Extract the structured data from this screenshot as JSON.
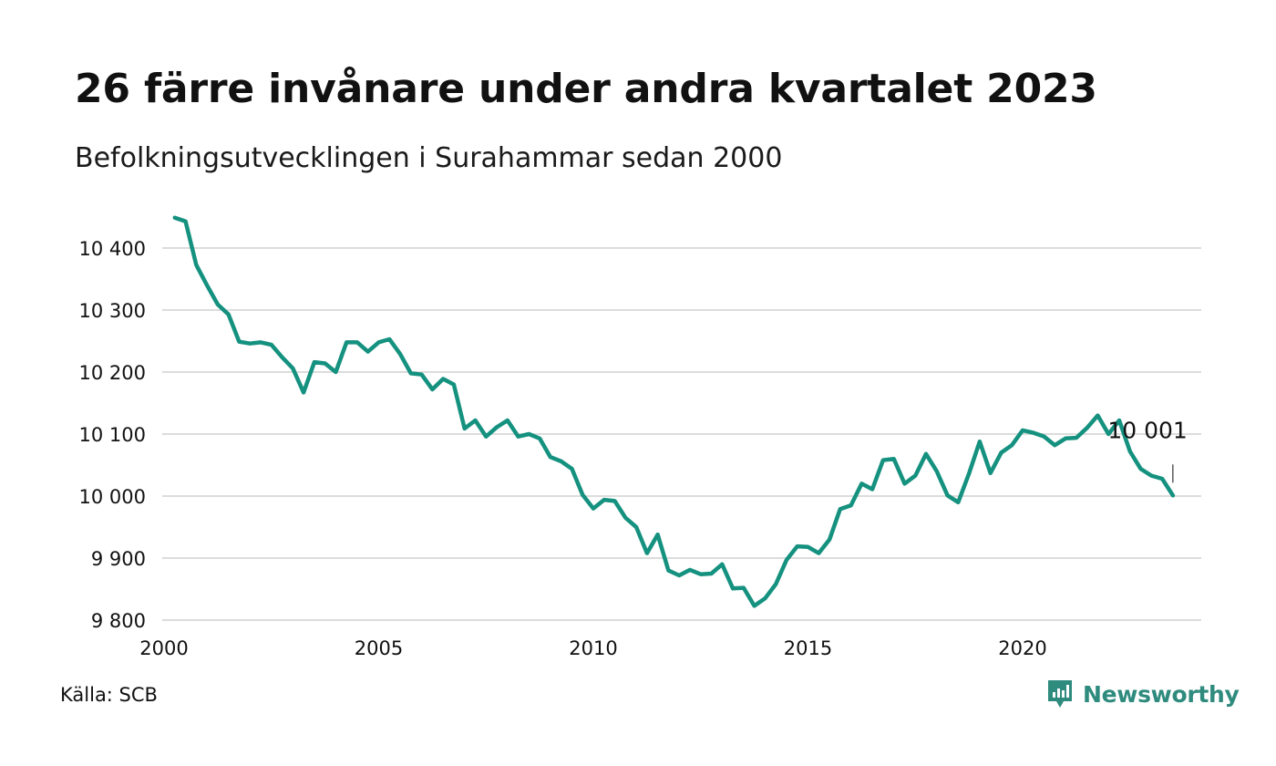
{
  "title": "26 färre invånare under andra kvartalet 2023",
  "subtitle": "Befolkningsutvecklingen i Surahammar sedan 2000",
  "source": "Källa: SCB",
  "brand": {
    "name": "Newsworthy",
    "icon": "newsworthy-logo-icon"
  },
  "colors": {
    "line": "#15917f",
    "grid": "#dcdcdc",
    "brand": "#2e8b7e",
    "text": "#111111"
  },
  "chart_data": {
    "type": "line",
    "title": "26 färre invånare under andra kvartalet 2023",
    "subtitle": "Befolkningsutvecklingen i Surahammar sedan 2000",
    "xlabel": "",
    "ylabel": "",
    "xlim": [
      2000,
      2024.5
    ],
    "ylim": [
      9800,
      10450
    ],
    "grid": true,
    "legend": "none",
    "x_ticks": [
      2000,
      2005,
      2010,
      2015,
      2020
    ],
    "x_tick_labels": [
      "2000",
      "2005",
      "2010",
      "2015",
      "2020"
    ],
    "y_ticks": [
      9800,
      9900,
      10000,
      10100,
      10200,
      10300,
      10400
    ],
    "y_tick_labels": [
      "9 800",
      "9 900",
      "10 000",
      "10 100",
      "10 200",
      "10 300",
      "10 400"
    ],
    "annotation": {
      "x": 2023.5,
      "y": 10001,
      "text": "10 001"
    },
    "series": [
      {
        "x": [
          2000.25,
          2000.5,
          2000.75,
          2001.0,
          2001.25,
          2001.5,
          2001.75,
          2002.0,
          2002.25,
          2002.5,
          2002.75,
          2003.0,
          2003.25,
          2003.5,
          2003.75,
          2004.0,
          2004.25,
          2004.5,
          2004.75,
          2005.0,
          2005.25,
          2005.5,
          2005.75,
          2006.0,
          2006.25,
          2006.5,
          2006.75,
          2007.0,
          2007.25,
          2007.5,
          2007.75,
          2008.0,
          2008.25,
          2008.5,
          2008.75,
          2009.0,
          2009.25,
          2009.5,
          2009.75,
          2010.0,
          2010.25,
          2010.5,
          2010.75,
          2011.0,
          2011.25,
          2011.5,
          2011.75,
          2012.0,
          2012.25,
          2012.5,
          2012.75,
          2013.0,
          2013.25,
          2013.5,
          2013.75,
          2014.0,
          2014.25,
          2014.5,
          2014.75,
          2015.0,
          2015.25,
          2015.5,
          2015.75,
          2016.0,
          2016.25,
          2016.5,
          2016.75,
          2017.0,
          2017.25,
          2017.5,
          2017.75,
          2018.0,
          2018.25,
          2018.5,
          2018.75,
          2019.0,
          2019.25,
          2019.5,
          2019.75,
          2020.0,
          2020.25,
          2020.5,
          2020.75,
          2021.0,
          2021.25,
          2021.5,
          2021.75,
          2022.0,
          2022.25,
          2022.5,
          2022.75,
          2023.0,
          2023.25,
          2023.5
        ],
        "values": [
          10449,
          10443,
          10373,
          10340,
          10309,
          10293,
          10249,
          10246,
          10248,
          10244,
          10224,
          10206,
          10167,
          10216,
          10214,
          10200,
          10248,
          10248,
          10233,
          10248,
          10253,
          10229,
          10198,
          10196,
          10172,
          10189,
          10180,
          10109,
          10122,
          10096,
          10111,
          10122,
          10096,
          10100,
          10093,
          10063,
          10056,
          10044,
          10002,
          9980,
          9994,
          9992,
          9965,
          9950,
          9908,
          9938,
          9880,
          9872,
          9881,
          9874,
          9875,
          9890,
          9851,
          9852,
          9823,
          9835,
          9858,
          9897,
          9919,
          9918,
          9908,
          9930,
          9979,
          9985,
          10020,
          10011,
          10058,
          10060,
          10020,
          10033,
          10068,
          10040,
          10001,
          9990,
          10036,
          10088,
          10037,
          10070,
          10082,
          10106,
          10102,
          10096,
          10082,
          10093,
          10094,
          10110,
          10130,
          10100,
          10122,
          10072,
          10044,
          10033,
          10028,
          10001
        ]
      }
    ]
  }
}
